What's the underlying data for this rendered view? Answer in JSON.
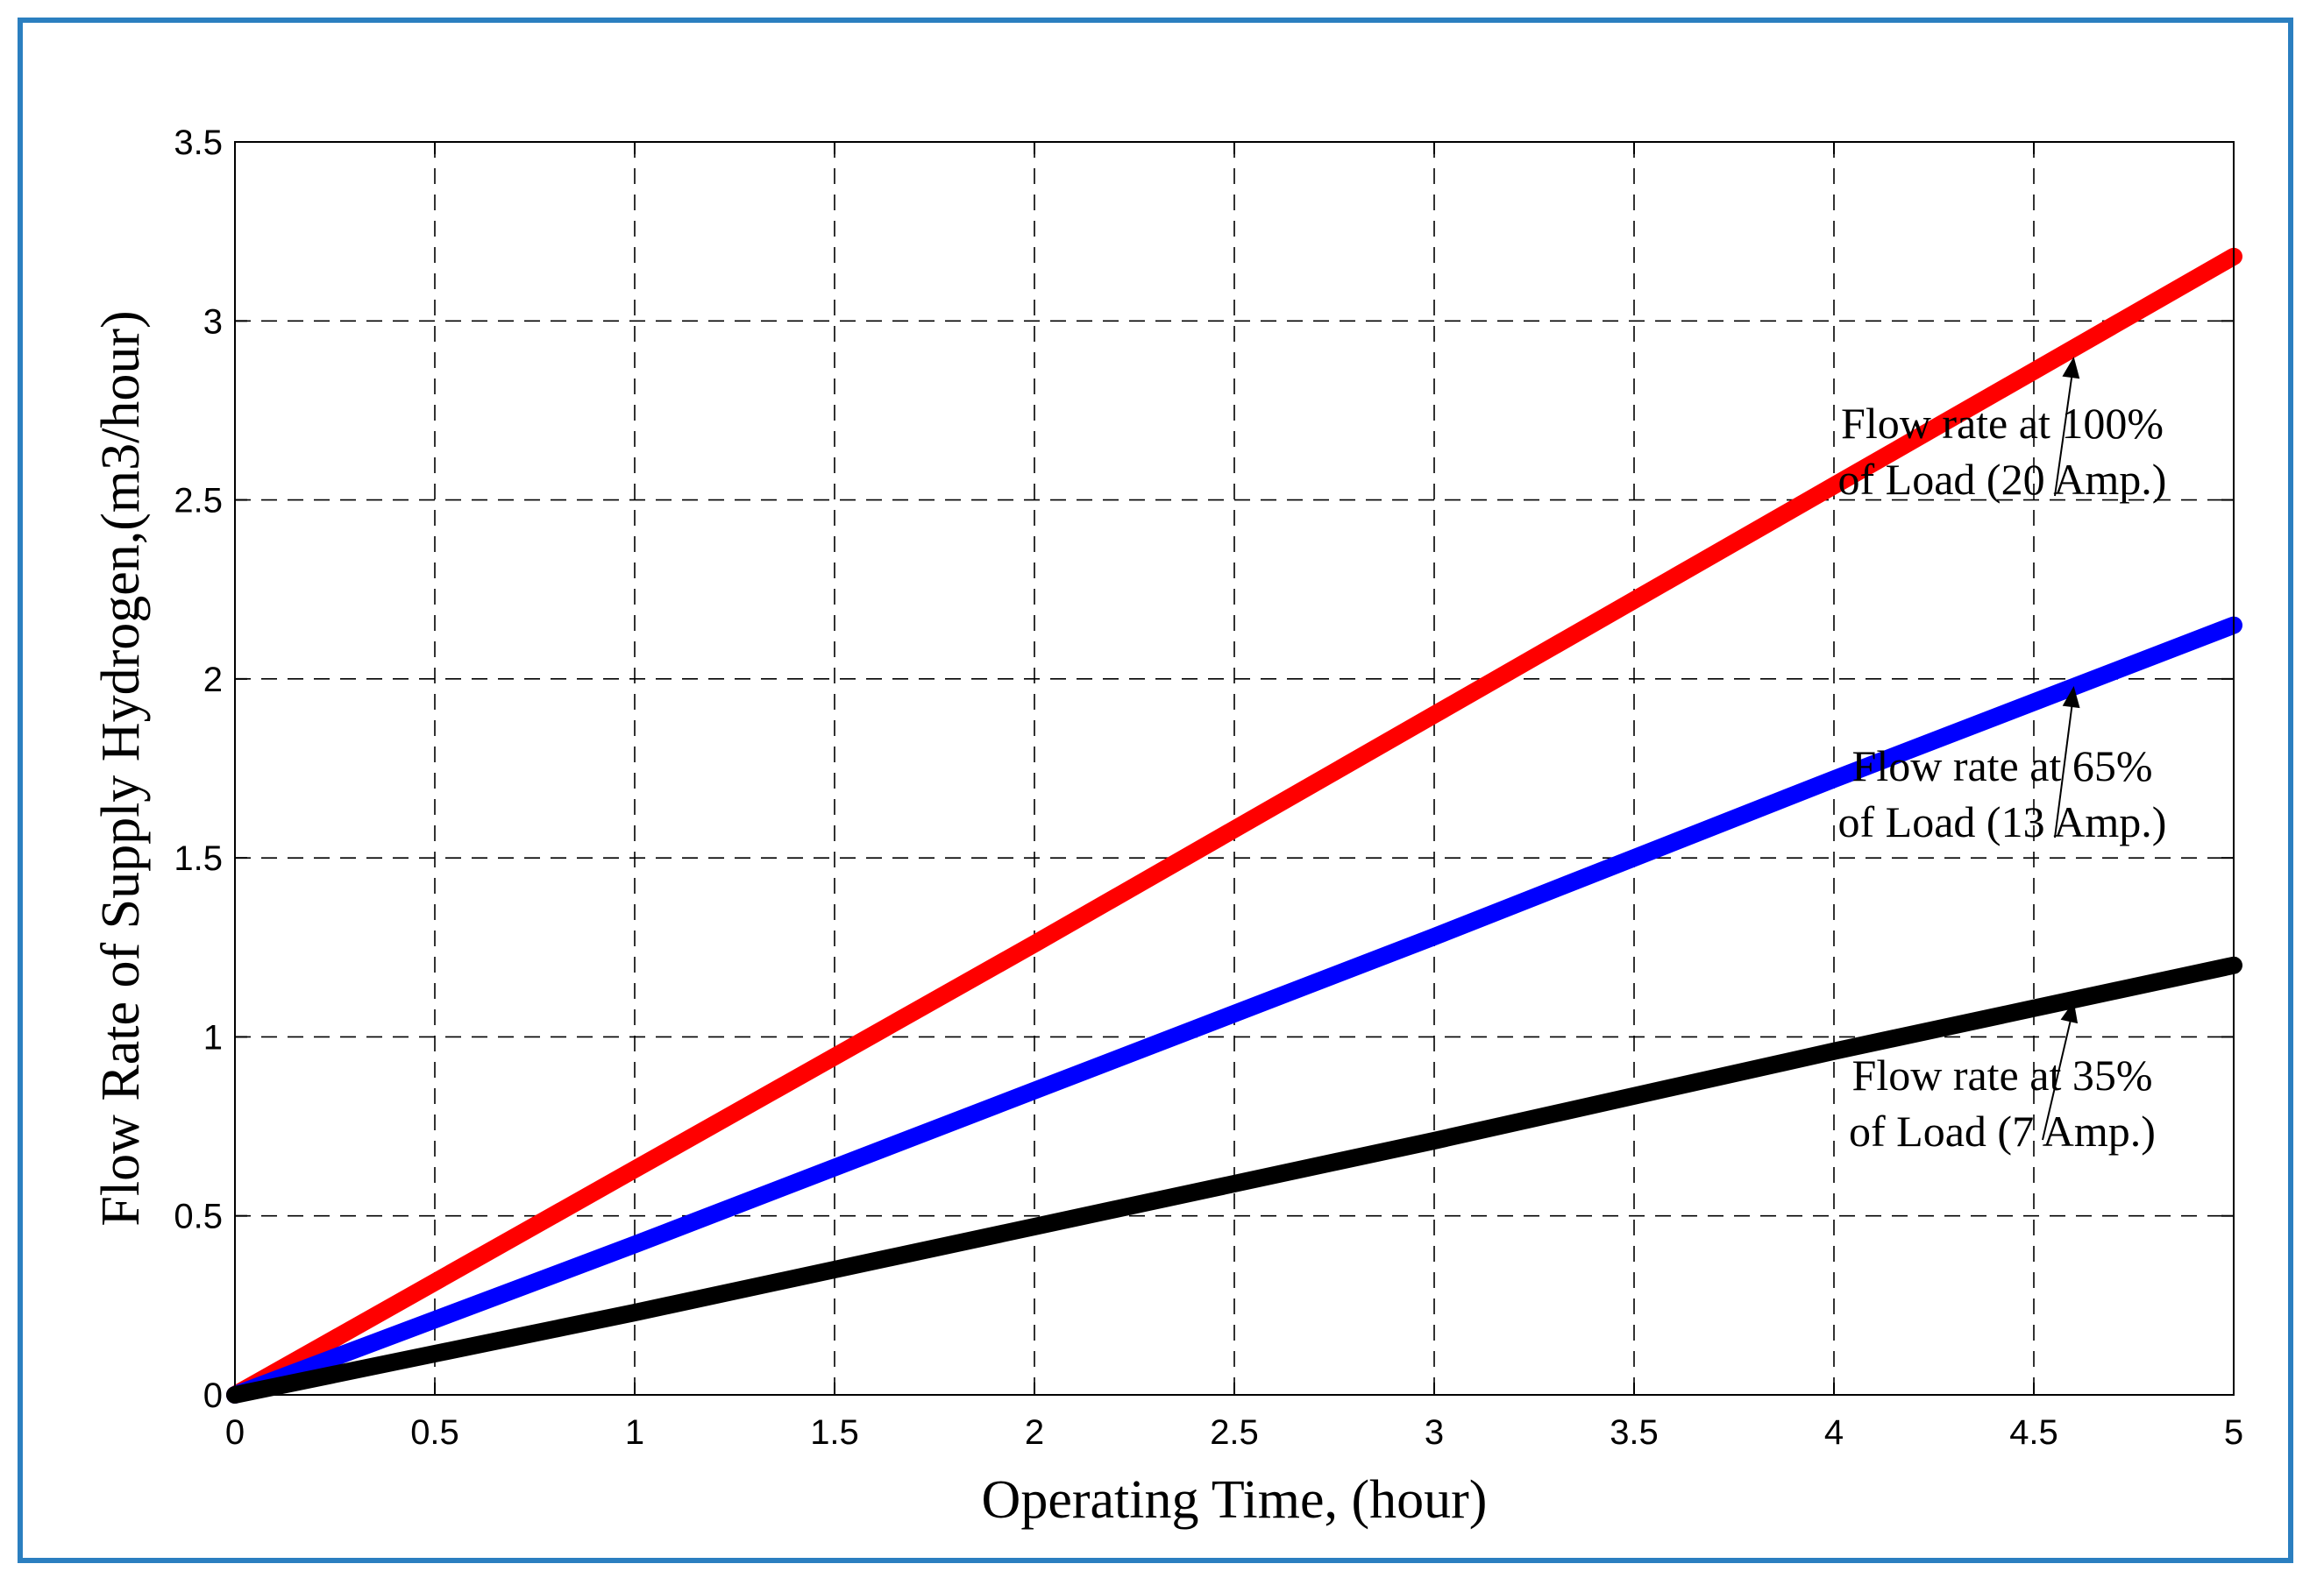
{
  "chart_data": {
    "type": "line",
    "xlabel": "Operating Time, (hour)",
    "ylabel": "Flow Rate of Supply Hydrogen,(m3/hour)",
    "xlim": [
      0,
      5
    ],
    "ylim": [
      0,
      3.5
    ],
    "xticks": [
      "0",
      "0.5",
      "1",
      "1.5",
      "2",
      "2.5",
      "3",
      "3.5",
      "4",
      "4.5",
      "5"
    ],
    "yticks": [
      "0",
      "0.5",
      "1",
      "1.5",
      "2",
      "2.5",
      "3",
      "3.5"
    ],
    "grid": true,
    "series": [
      {
        "color": "#ff0000",
        "x": [
          0,
          1,
          2,
          3,
          4,
          5
        ],
        "y": [
          0,
          0.63,
          1.26,
          1.9,
          2.54,
          3.18
        ]
      },
      {
        "color": "#0000ff",
        "x": [
          0,
          1,
          2,
          3,
          4,
          5
        ],
        "y": [
          0,
          0.42,
          0.85,
          1.28,
          1.72,
          2.15
        ]
      },
      {
        "color": "#000000",
        "x": [
          0,
          1,
          2,
          3,
          4,
          5
        ],
        "y": [
          0,
          0.23,
          0.47,
          0.71,
          0.96,
          1.2
        ]
      }
    ],
    "annotations": [
      {
        "lines": [
          "Flow rate at 100%",
          "of Load (20 Amp.)"
        ],
        "arrow_to": [
          4.6,
          2.9
        ]
      },
      {
        "lines": [
          "Flow rate at 65%",
          "of Load (13 Amp.)"
        ],
        "arrow_to": [
          4.6,
          1.98
        ]
      },
      {
        "lines": [
          "Flow rate at 35%",
          "of Load (7 Amp.)"
        ],
        "arrow_to": [
          4.6,
          1.1
        ]
      }
    ]
  },
  "colors": {
    "frame": "#2b7fc0"
  }
}
